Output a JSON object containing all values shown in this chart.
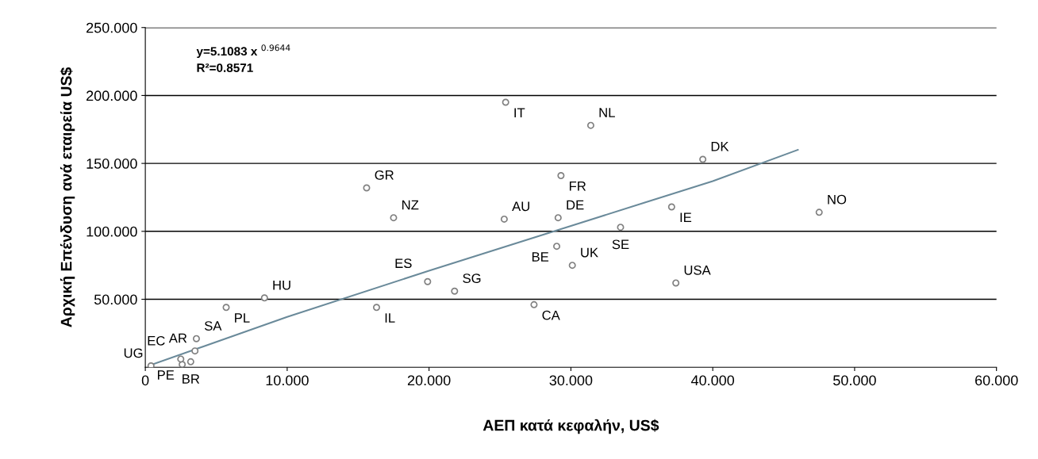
{
  "chart_data": {
    "type": "scatter",
    "xlabel": "ΑΕΠ κατά κεφαλήν, US$",
    "ylabel": "Αρχική Επένδυση ανά εταιρεία US$",
    "xlim": [
      0,
      60
    ],
    "ylim": [
      0,
      250
    ],
    "xticks": [
      {
        "value": 0,
        "label": "0"
      },
      {
        "value": 10,
        "label": "10.000"
      },
      {
        "value": 20,
        "label": "20.000"
      },
      {
        "value": 30,
        "label": "30.000"
      },
      {
        "value": 40,
        "label": "40.000"
      },
      {
        "value": 50,
        "label": "50.000"
      },
      {
        "value": 60,
        "label": "60.000"
      }
    ],
    "yticks": [
      {
        "value": 50,
        "label": "50.000"
      },
      {
        "value": 100,
        "label": "100.000"
      },
      {
        "value": 150,
        "label": "150.000"
      },
      {
        "value": 200,
        "label": "200.000"
      },
      {
        "value": 250,
        "label": "250.000"
      }
    ],
    "grid": "y",
    "series": [
      {
        "color": "#808080",
        "x": [
          25.4,
          31.4,
          39.3,
          29.3,
          15.6,
          25.3,
          29.1,
          17.5,
          33.5,
          37.1,
          47.5,
          29.0,
          30.1,
          37.4,
          19.9,
          21.8,
          27.4,
          16.3,
          8.4,
          5.7,
          3.6,
          3.5,
          3.2,
          2.6,
          2.5,
          0.4
        ],
        "values": [
          195,
          178,
          153,
          141,
          132,
          109,
          110,
          110,
          103,
          118,
          114,
          89,
          75,
          62,
          63,
          56,
          46,
          44,
          51,
          44,
          21,
          12,
          4,
          2,
          6,
          1
        ]
      },
      {
        "type": "line",
        "color": "#6a8a9a",
        "x": [
          0.5,
          10,
          20,
          30,
          40,
          46
        ],
        "values": [
          2,
          37,
          71,
          104,
          137,
          160
        ]
      }
    ],
    "annotations": [
      "y=5.1083 x $^{0.9644}$",
      "R²=0.8571",
      {
        "text": "IT",
        "x": 25.4,
        "y": 195
      },
      {
        "text": "NL",
        "x": 31.4,
        "y": 178
      },
      {
        "text": "DK",
        "x": 39.3,
        "y": 153
      },
      {
        "text": "FR",
        "x": 29.3,
        "y": 141
      },
      {
        "text": "GR",
        "x": 15.6,
        "y": 132
      },
      {
        "text": "AU",
        "x": 25.3,
        "y": 109
      },
      {
        "text": "DE",
        "x": 29.1,
        "y": 110
      },
      {
        "text": "NZ",
        "x": 17.5,
        "y": 110
      },
      {
        "text": "SE",
        "x": 33.5,
        "y": 103
      },
      {
        "text": "IE",
        "x": 37.1,
        "y": 118
      },
      {
        "text": "NO",
        "x": 47.5,
        "y": 114
      },
      {
        "text": "BE",
        "x": 29.0,
        "y": 89
      },
      {
        "text": "UK",
        "x": 30.1,
        "y": 75
      },
      {
        "text": "USA",
        "x": 37.4,
        "y": 62
      },
      {
        "text": "ES",
        "x": 19.9,
        "y": 63
      },
      {
        "text": "SG",
        "x": 21.8,
        "y": 56
      },
      {
        "text": "CA",
        "x": 27.4,
        "y": 46
      },
      {
        "text": "IL",
        "x": 16.3,
        "y": 44
      },
      {
        "text": "HU",
        "x": 8.4,
        "y": 51
      },
      {
        "text": "PL",
        "x": 5.7,
        "y": 44
      },
      {
        "text": "SA",
        "x": 3.6,
        "y": 21
      },
      {
        "text": "AR",
        "x": 3.5,
        "y": 12
      },
      {
        "text": "BR",
        "x": 3.2,
        "y": 4
      },
      {
        "text": "PE",
        "x": 2.6,
        "y": 2
      },
      {
        "text": "EC",
        "x": 2.5,
        "y": 6
      },
      {
        "text": "UG",
        "x": 0.4,
        "y": 1
      }
    ]
  }
}
